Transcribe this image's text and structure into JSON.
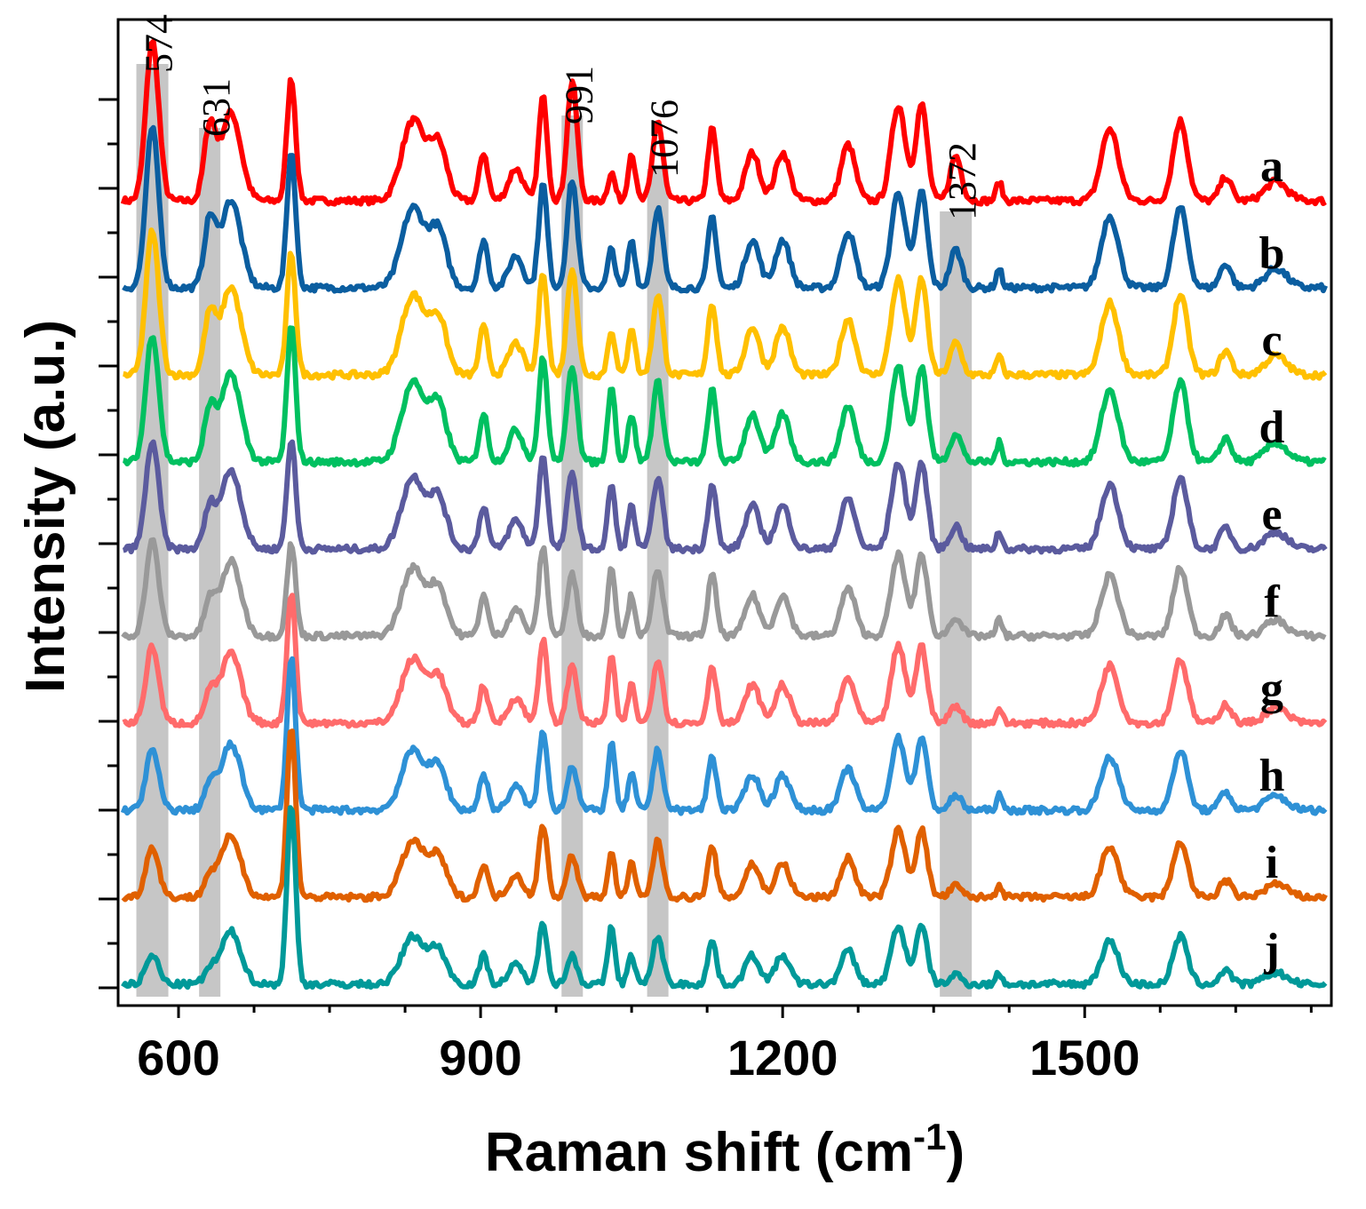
{
  "chart_data": {
    "type": "line",
    "xlabel": "Raman shift (cm",
    "xlabel_superscript": "-1",
    "xlabel_close": ")",
    "ylabel": "Intensity (a.u.)",
    "xlim": [
      540,
      1745
    ],
    "x_ticks": [
      600,
      900,
      1200,
      1500
    ],
    "x_tick_labels": [
      "600",
      "900",
      "1200",
      "1500"
    ],
    "y_ticks_shown": false,
    "highlight_bands": [
      {
        "center": 574,
        "label": "574"
      },
      {
        "center": 631,
        "label": "631"
      },
      {
        "center": 991,
        "label": "991"
      },
      {
        "center": 1076,
        "label": "1076"
      },
      {
        "center": 1372,
        "label": "1372"
      }
    ],
    "peaks": [
      {
        "x": 574,
        "w": 9,
        "h": 1.0
      },
      {
        "x": 631,
        "w": 8,
        "h": 0.45
      },
      {
        "x": 652,
        "w": 14,
        "h": 0.55
      },
      {
        "x": 712,
        "w": 6,
        "h": 0.85
      },
      {
        "x": 833,
        "w": 16,
        "h": 0.5
      },
      {
        "x": 858,
        "w": 12,
        "h": 0.35
      },
      {
        "x": 903,
        "w": 6,
        "h": 0.3
      },
      {
        "x": 935,
        "w": 10,
        "h": 0.2
      },
      {
        "x": 962,
        "w": 6,
        "h": 0.65
      },
      {
        "x": 991,
        "w": 7,
        "h": 0.75
      },
      {
        "x": 1030,
        "w": 5,
        "h": 0.35
      },
      {
        "x": 1050,
        "w": 5,
        "h": 0.3
      },
      {
        "x": 1076,
        "w": 7,
        "h": 0.5
      },
      {
        "x": 1130,
        "w": 6,
        "h": 0.45
      },
      {
        "x": 1170,
        "w": 10,
        "h": 0.3
      },
      {
        "x": 1200,
        "w": 10,
        "h": 0.3
      },
      {
        "x": 1265,
        "w": 10,
        "h": 0.35
      },
      {
        "x": 1315,
        "w": 10,
        "h": 0.6
      },
      {
        "x": 1338,
        "w": 8,
        "h": 0.6
      },
      {
        "x": 1372,
        "w": 8,
        "h": 0.2
      },
      {
        "x": 1415,
        "w": 4,
        "h": 0.12
      },
      {
        "x": 1525,
        "w": 12,
        "h": 0.45
      },
      {
        "x": 1595,
        "w": 10,
        "h": 0.5
      },
      {
        "x": 1640,
        "w": 8,
        "h": 0.15
      },
      {
        "x": 1690,
        "w": 15,
        "h": 0.12
      }
    ],
    "series": [
      {
        "name": "a",
        "color": "#ff0000",
        "scale": 1.0,
        "offset": 9,
        "mod": {
          "574": 1.0,
          "631": 1.0,
          "712": 0.9,
          "991": 1.0,
          "1030": 0.5,
          "1372": 1.4
        }
      },
      {
        "name": "b",
        "color": "#0b5ea0",
        "scale": 1.0,
        "offset": 8,
        "mod": {
          "574": 1.0,
          "631": 0.9,
          "712": 1.0,
          "991": 0.9,
          "1030": 0.7,
          "1372": 1.2
        }
      },
      {
        "name": "c",
        "color": "#ffc000",
        "scale": 1.0,
        "offset": 7,
        "mod": {
          "574": 0.9,
          "631": 0.8,
          "712": 0.9,
          "991": 0.9,
          "1030": 0.8,
          "1372": 1.0
        }
      },
      {
        "name": "d",
        "color": "#00c060",
        "scale": 1.0,
        "offset": 6,
        "mod": {
          "574": 0.8,
          "631": 0.7,
          "712": 1.0,
          "991": 0.8,
          "1030": 1.4,
          "1372": 0.9
        }
      },
      {
        "name": "e",
        "color": "#5b5b9e",
        "scale": 0.9,
        "offset": 5,
        "mod": {
          "574": 0.75,
          "631": 0.6,
          "712": 0.9,
          "991": 0.7,
          "1030": 1.3,
          "1372": 0.8
        }
      },
      {
        "name": "f",
        "color": "#999999",
        "scale": 0.85,
        "offset": 4,
        "mod": {
          "574": 0.7,
          "631": 0.55,
          "712": 0.8,
          "991": 0.6,
          "1030": 1.5,
          "1372": 0.7
        }
      },
      {
        "name": "g",
        "color": "#ff6b6b",
        "scale": 0.8,
        "offset": 3,
        "mod": {
          "574": 0.6,
          "631": 0.5,
          "712": 1.2,
          "991": 0.6,
          "1030": 1.5,
          "1372": 0.7
        }
      },
      {
        "name": "h",
        "color": "#2e91d6",
        "scale": 0.75,
        "offset": 2,
        "mod": {
          "574": 0.5,
          "631": 0.45,
          "712": 1.5,
          "991": 0.5,
          "1030": 1.6,
          "1372": 0.6
        }
      },
      {
        "name": "i",
        "color": "#e06000",
        "scale": 0.7,
        "offset": 1,
        "mod": {
          "574": 0.45,
          "631": 0.4,
          "712": 1.8,
          "991": 0.5,
          "1030": 1.1,
          "1372": 0.5
        }
      },
      {
        "name": "j",
        "color": "#009999",
        "scale": 0.6,
        "offset": 0,
        "mod": {
          "574": 0.3,
          "631": 0.3,
          "712": 2.2,
          "991": 0.4,
          "1030": 1.7,
          "1372": 0.5
        }
      }
    ]
  }
}
